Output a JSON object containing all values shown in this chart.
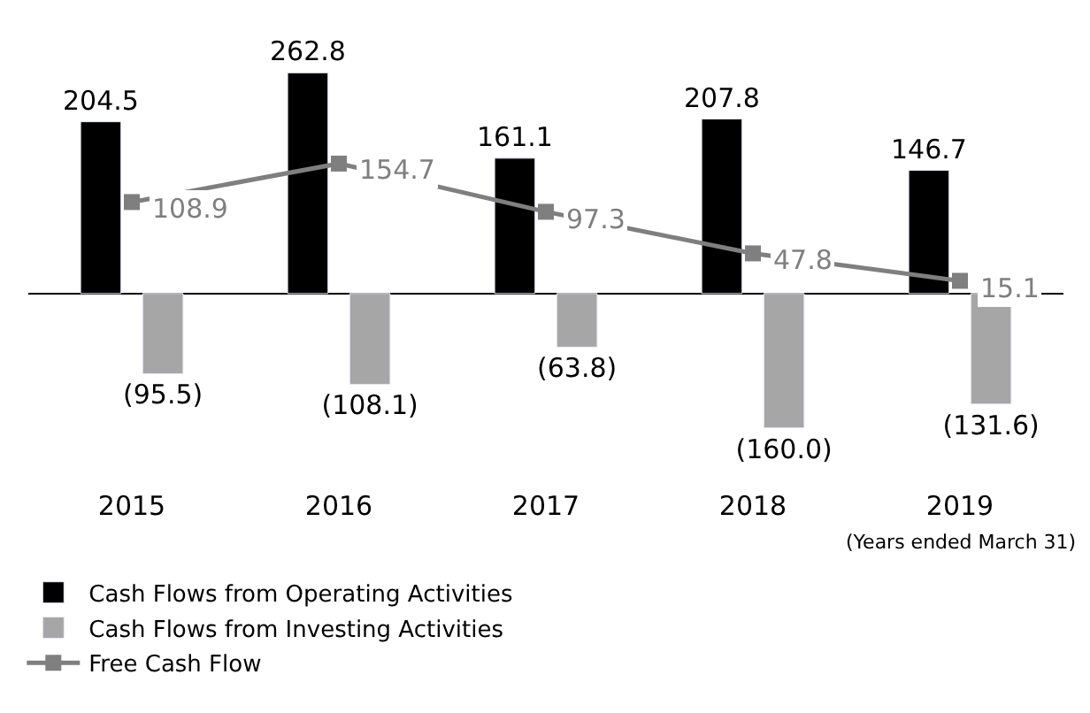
{
  "chart_data": {
    "type": "bar",
    "categories": [
      "2015",
      "2016",
      "2017",
      "2018",
      "2019"
    ],
    "series": [
      {
        "name": "Cash Flows from Operating Activities",
        "color": "#000000",
        "values": [
          204.5,
          262.8,
          161.1,
          207.8,
          146.7
        ],
        "value_labels": [
          "204.5",
          "262.8",
          "161.1",
          "207.8",
          "146.7"
        ]
      },
      {
        "name": "Cash Flows from Investing Activities",
        "color": "#a6a6a6",
        "values": [
          -95.5,
          -108.1,
          -63.8,
          -160.0,
          -131.6
        ],
        "value_labels": [
          "(95.5)",
          "(108.1)",
          "(63.8)",
          "(160.0)",
          "(131.6)"
        ]
      },
      {
        "name": "Free Cash Flow",
        "type": "line",
        "color": "#7f7f7f",
        "marker": "square",
        "values": [
          108.9,
          154.7,
          97.3,
          47.8,
          15.1
        ],
        "value_labels": [
          "108.9",
          "154.7",
          "97.3",
          "47.8",
          "15.1"
        ]
      }
    ],
    "tick_labels": "x",
    "legend": "bottom left",
    "annotations": [
      "(Years ended March 31)"
    ]
  }
}
